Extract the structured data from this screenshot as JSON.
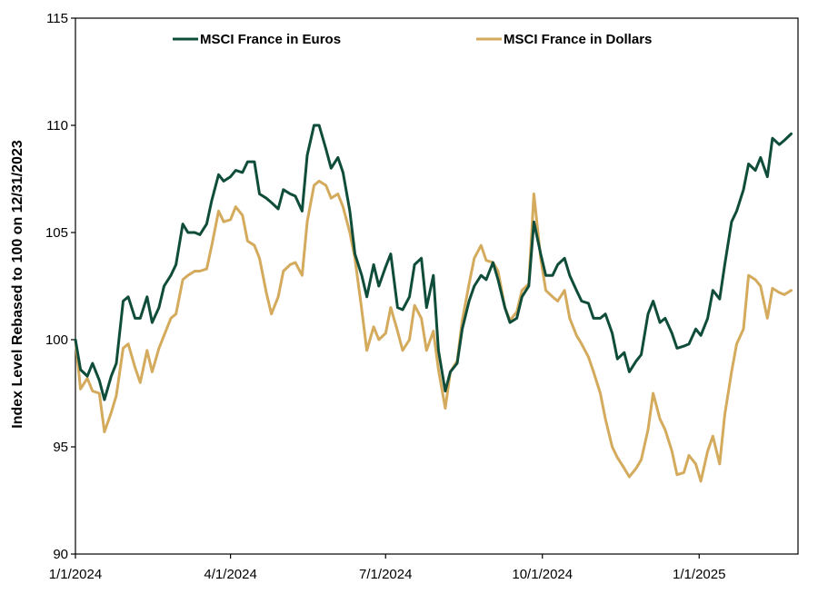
{
  "chart_data": {
    "type": "line",
    "ylabel": "Index Level Rebased to 100 on 12/31/2023",
    "xlabel": "",
    "ylim": [
      90,
      115
    ],
    "yticks": [
      90,
      95,
      100,
      105,
      110,
      115
    ],
    "xlim": [
      "2024-01-01",
      "2025-02-28"
    ],
    "xticks": [
      "1/1/2024",
      "4/1/2024",
      "7/1/2024",
      "10/1/2024",
      "1/1/2025"
    ],
    "grid": false,
    "legend_position": "top",
    "series": [
      {
        "name": "MSCI France in Euros",
        "color": "#0f4d3a",
        "points": [
          [
            "2024-01-01",
            100.0
          ],
          [
            "2024-01-04",
            98.6
          ],
          [
            "2024-01-08",
            98.3
          ],
          [
            "2024-01-11",
            98.9
          ],
          [
            "2024-01-15",
            98.1
          ],
          [
            "2024-01-18",
            97.2
          ],
          [
            "2024-01-22",
            98.3
          ],
          [
            "2024-01-25",
            98.9
          ],
          [
            "2024-01-29",
            101.8
          ],
          [
            "2024-02-01",
            102.0
          ],
          [
            "2024-02-05",
            101.0
          ],
          [
            "2024-02-08",
            101.0
          ],
          [
            "2024-02-12",
            102.0
          ],
          [
            "2024-02-15",
            100.8
          ],
          [
            "2024-02-19",
            101.5
          ],
          [
            "2024-02-22",
            102.5
          ],
          [
            "2024-02-26",
            103.0
          ],
          [
            "2024-02-29",
            103.5
          ],
          [
            "2024-03-04",
            105.4
          ],
          [
            "2024-03-07",
            105.0
          ],
          [
            "2024-03-11",
            105.0
          ],
          [
            "2024-03-14",
            104.9
          ],
          [
            "2024-03-18",
            105.4
          ],
          [
            "2024-03-21",
            106.5
          ],
          [
            "2024-03-25",
            107.7
          ],
          [
            "2024-03-28",
            107.4
          ],
          [
            "2024-04-01",
            107.6
          ],
          [
            "2024-04-04",
            107.9
          ],
          [
            "2024-04-08",
            107.8
          ],
          [
            "2024-04-11",
            108.3
          ],
          [
            "2024-04-15",
            108.3
          ],
          [
            "2024-04-18",
            106.8
          ],
          [
            "2024-04-22",
            106.6
          ],
          [
            "2024-04-25",
            106.4
          ],
          [
            "2024-04-29",
            106.1
          ],
          [
            "2024-05-02",
            107.0
          ],
          [
            "2024-05-06",
            106.8
          ],
          [
            "2024-05-09",
            106.7
          ],
          [
            "2024-05-13",
            106.0
          ],
          [
            "2024-05-16",
            108.6
          ],
          [
            "2024-05-20",
            110.0
          ],
          [
            "2024-05-23",
            110.0
          ],
          [
            "2024-05-27",
            108.9
          ],
          [
            "2024-05-30",
            108.0
          ],
          [
            "2024-06-03",
            108.5
          ],
          [
            "2024-06-06",
            107.8
          ],
          [
            "2024-06-10",
            106.0
          ],
          [
            "2024-06-13",
            104.0
          ],
          [
            "2024-06-17",
            103.0
          ],
          [
            "2024-06-20",
            102.0
          ],
          [
            "2024-06-24",
            103.5
          ],
          [
            "2024-06-27",
            102.5
          ],
          [
            "2024-07-01",
            103.4
          ],
          [
            "2024-07-04",
            104.0
          ],
          [
            "2024-07-08",
            101.5
          ],
          [
            "2024-07-11",
            101.4
          ],
          [
            "2024-07-15",
            102.0
          ],
          [
            "2024-07-18",
            103.5
          ],
          [
            "2024-07-22",
            103.8
          ],
          [
            "2024-07-25",
            101.5
          ],
          [
            "2024-07-29",
            103.0
          ],
          [
            "2024-08-01",
            99.5
          ],
          [
            "2024-08-05",
            97.6
          ],
          [
            "2024-08-08",
            98.5
          ],
          [
            "2024-08-12",
            98.9
          ],
          [
            "2024-08-15",
            100.5
          ],
          [
            "2024-08-19",
            101.8
          ],
          [
            "2024-08-22",
            102.5
          ],
          [
            "2024-08-26",
            103.0
          ],
          [
            "2024-08-29",
            102.8
          ],
          [
            "2024-09-02",
            103.6
          ],
          [
            "2024-09-05",
            102.8
          ],
          [
            "2024-09-09",
            101.5
          ],
          [
            "2024-09-12",
            100.8
          ],
          [
            "2024-09-16",
            101.0
          ],
          [
            "2024-09-19",
            102.0
          ],
          [
            "2024-09-23",
            102.5
          ],
          [
            "2024-09-26",
            105.5
          ],
          [
            "2024-09-30",
            104.0
          ],
          [
            "2024-10-03",
            103.0
          ],
          [
            "2024-10-07",
            103.0
          ],
          [
            "2024-10-10",
            103.5
          ],
          [
            "2024-10-14",
            103.8
          ],
          [
            "2024-10-17",
            103.0
          ],
          [
            "2024-10-21",
            102.3
          ],
          [
            "2024-10-24",
            101.8
          ],
          [
            "2024-10-28",
            101.7
          ],
          [
            "2024-10-31",
            101.0
          ],
          [
            "2024-11-04",
            101.0
          ],
          [
            "2024-11-07",
            101.2
          ],
          [
            "2024-11-11",
            100.3
          ],
          [
            "2024-11-14",
            99.1
          ],
          [
            "2024-11-18",
            99.4
          ],
          [
            "2024-11-21",
            98.5
          ],
          [
            "2024-11-25",
            99.0
          ],
          [
            "2024-11-28",
            99.3
          ],
          [
            "2024-12-02",
            101.2
          ],
          [
            "2024-12-05",
            101.8
          ],
          [
            "2024-12-09",
            100.8
          ],
          [
            "2024-12-12",
            101.0
          ],
          [
            "2024-12-16",
            100.3
          ],
          [
            "2024-12-19",
            99.6
          ],
          [
            "2024-12-23",
            99.7
          ],
          [
            "2024-12-26",
            99.8
          ],
          [
            "2024-12-30",
            100.5
          ],
          [
            "2025-01-02",
            100.2
          ],
          [
            "2025-01-06",
            101.0
          ],
          [
            "2025-01-09",
            102.3
          ],
          [
            "2025-01-13",
            101.9
          ],
          [
            "2025-01-16",
            103.5
          ],
          [
            "2025-01-20",
            105.5
          ],
          [
            "2025-01-23",
            106.0
          ],
          [
            "2025-01-27",
            107.0
          ],
          [
            "2025-01-30",
            108.2
          ],
          [
            "2025-02-03",
            107.9
          ],
          [
            "2025-02-06",
            108.5
          ],
          [
            "2025-02-10",
            107.6
          ],
          [
            "2025-02-13",
            109.4
          ],
          [
            "2025-02-17",
            109.1
          ],
          [
            "2025-02-20",
            109.3
          ],
          [
            "2025-02-24",
            109.6
          ]
        ]
      },
      {
        "name": "MSCI France in Dollars",
        "color": "#d4aa5c",
        "points": [
          [
            "2024-01-01",
            100.0
          ],
          [
            "2024-01-04",
            97.7
          ],
          [
            "2024-01-08",
            98.2
          ],
          [
            "2024-01-11",
            97.6
          ],
          [
            "2024-01-15",
            97.5
          ],
          [
            "2024-01-18",
            95.7
          ],
          [
            "2024-01-22",
            96.6
          ],
          [
            "2024-01-25",
            97.4
          ],
          [
            "2024-01-29",
            99.6
          ],
          [
            "2024-02-01",
            99.8
          ],
          [
            "2024-02-05",
            98.7
          ],
          [
            "2024-02-08",
            98.0
          ],
          [
            "2024-02-12",
            99.5
          ],
          [
            "2024-02-15",
            98.5
          ],
          [
            "2024-02-19",
            99.6
          ],
          [
            "2024-02-22",
            100.2
          ],
          [
            "2024-02-26",
            101.0
          ],
          [
            "2024-02-29",
            101.2
          ],
          [
            "2024-03-04",
            102.8
          ],
          [
            "2024-03-07",
            103.0
          ],
          [
            "2024-03-11",
            103.2
          ],
          [
            "2024-03-14",
            103.2
          ],
          [
            "2024-03-18",
            103.3
          ],
          [
            "2024-03-21",
            104.4
          ],
          [
            "2024-03-25",
            106.0
          ],
          [
            "2024-03-28",
            105.5
          ],
          [
            "2024-04-01",
            105.6
          ],
          [
            "2024-04-04",
            106.2
          ],
          [
            "2024-04-08",
            105.8
          ],
          [
            "2024-04-11",
            104.6
          ],
          [
            "2024-04-15",
            104.4
          ],
          [
            "2024-04-18",
            103.8
          ],
          [
            "2024-04-22",
            102.2
          ],
          [
            "2024-04-25",
            101.2
          ],
          [
            "2024-04-29",
            102.0
          ],
          [
            "2024-05-02",
            103.2
          ],
          [
            "2024-05-06",
            103.5
          ],
          [
            "2024-05-09",
            103.6
          ],
          [
            "2024-05-13",
            103.0
          ],
          [
            "2024-05-16",
            105.5
          ],
          [
            "2024-05-20",
            107.2
          ],
          [
            "2024-05-23",
            107.4
          ],
          [
            "2024-05-27",
            107.2
          ],
          [
            "2024-05-30",
            106.6
          ],
          [
            "2024-06-03",
            106.8
          ],
          [
            "2024-06-06",
            106.2
          ],
          [
            "2024-06-10",
            105.0
          ],
          [
            "2024-06-13",
            103.8
          ],
          [
            "2024-06-17",
            101.4
          ],
          [
            "2024-06-20",
            99.5
          ],
          [
            "2024-06-24",
            100.6
          ],
          [
            "2024-06-27",
            100.0
          ],
          [
            "2024-07-01",
            100.3
          ],
          [
            "2024-07-04",
            101.5
          ],
          [
            "2024-07-08",
            100.4
          ],
          [
            "2024-07-11",
            99.5
          ],
          [
            "2024-07-15",
            100.0
          ],
          [
            "2024-07-18",
            101.6
          ],
          [
            "2024-07-22",
            101.0
          ],
          [
            "2024-07-25",
            99.5
          ],
          [
            "2024-07-29",
            100.4
          ],
          [
            "2024-08-01",
            98.6
          ],
          [
            "2024-08-05",
            96.8
          ],
          [
            "2024-08-08",
            98.5
          ],
          [
            "2024-08-12",
            99.0
          ],
          [
            "2024-08-15",
            100.9
          ],
          [
            "2024-08-19",
            102.6
          ],
          [
            "2024-08-22",
            103.8
          ],
          [
            "2024-08-26",
            104.4
          ],
          [
            "2024-08-29",
            103.7
          ],
          [
            "2024-09-02",
            103.6
          ],
          [
            "2024-09-05",
            103.2
          ],
          [
            "2024-09-09",
            101.5
          ],
          [
            "2024-09-12",
            100.9
          ],
          [
            "2024-09-16",
            101.3
          ],
          [
            "2024-09-19",
            102.3
          ],
          [
            "2024-09-23",
            102.6
          ],
          [
            "2024-09-26",
            106.8
          ],
          [
            "2024-09-30",
            103.8
          ],
          [
            "2024-10-03",
            102.3
          ],
          [
            "2024-10-07",
            102.0
          ],
          [
            "2024-10-10",
            101.8
          ],
          [
            "2024-10-14",
            102.3
          ],
          [
            "2024-10-17",
            101.0
          ],
          [
            "2024-10-21",
            100.2
          ],
          [
            "2024-10-24",
            99.8
          ],
          [
            "2024-10-28",
            99.2
          ],
          [
            "2024-10-31",
            98.5
          ],
          [
            "2024-11-04",
            97.5
          ],
          [
            "2024-11-07",
            96.3
          ],
          [
            "2024-11-11",
            95.0
          ],
          [
            "2024-11-14",
            94.5
          ],
          [
            "2024-11-18",
            94.0
          ],
          [
            "2024-11-21",
            93.6
          ],
          [
            "2024-11-25",
            94.0
          ],
          [
            "2024-11-28",
            94.4
          ],
          [
            "2024-12-02",
            95.8
          ],
          [
            "2024-12-05",
            97.5
          ],
          [
            "2024-12-09",
            96.3
          ],
          [
            "2024-12-12",
            95.8
          ],
          [
            "2024-12-16",
            94.8
          ],
          [
            "2024-12-19",
            93.7
          ],
          [
            "2024-12-23",
            93.8
          ],
          [
            "2024-12-26",
            94.6
          ],
          [
            "2024-12-30",
            94.2
          ],
          [
            "2025-01-02",
            93.4
          ],
          [
            "2025-01-06",
            94.8
          ],
          [
            "2025-01-09",
            95.5
          ],
          [
            "2025-01-13",
            94.2
          ],
          [
            "2025-01-16",
            96.5
          ],
          [
            "2025-01-20",
            98.5
          ],
          [
            "2025-01-23",
            99.8
          ],
          [
            "2025-01-27",
            100.5
          ],
          [
            "2025-01-30",
            103.0
          ],
          [
            "2025-02-03",
            102.8
          ],
          [
            "2025-02-06",
            102.5
          ],
          [
            "2025-02-10",
            101.0
          ],
          [
            "2025-02-13",
            102.4
          ],
          [
            "2025-02-17",
            102.2
          ],
          [
            "2025-02-20",
            102.1
          ],
          [
            "2025-02-24",
            102.3
          ]
        ]
      }
    ]
  }
}
